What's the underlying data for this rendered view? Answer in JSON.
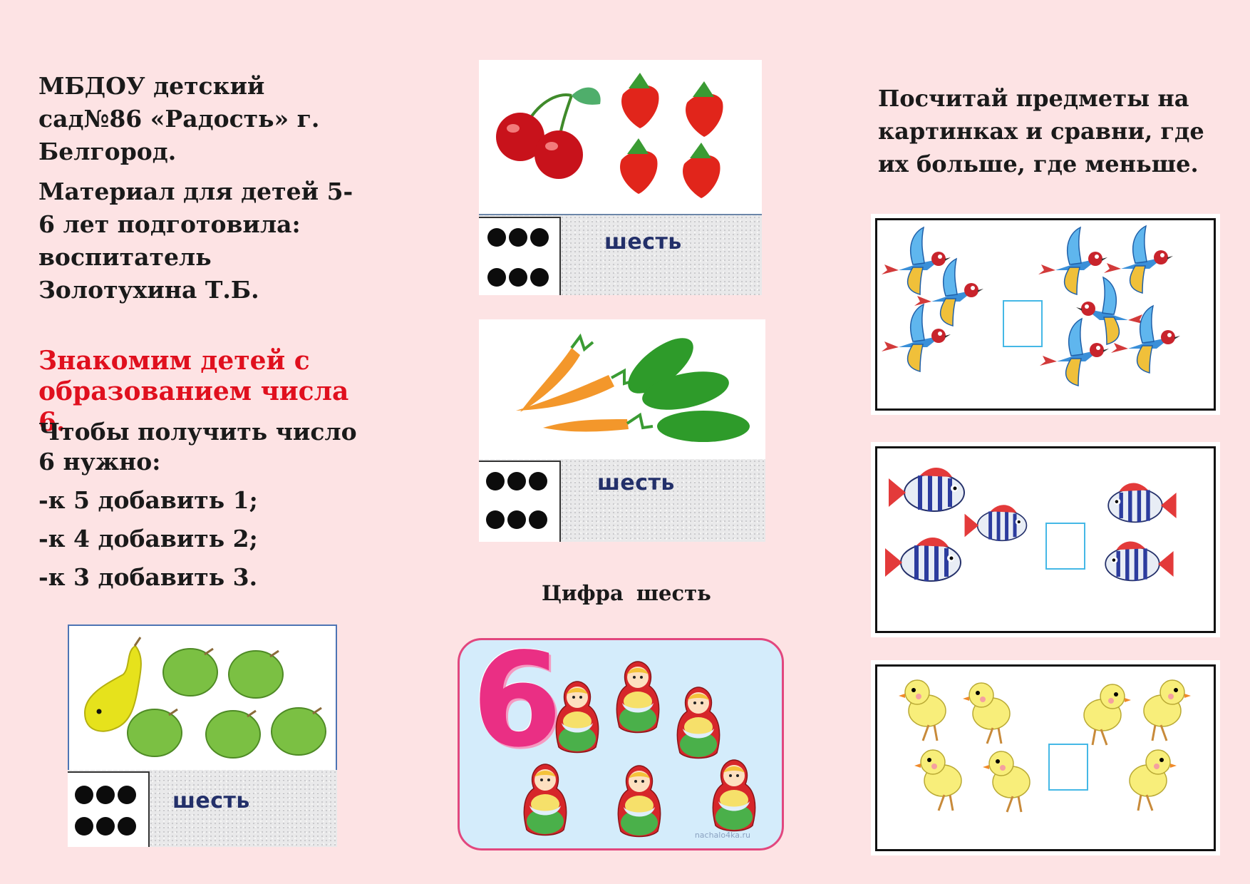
{
  "intro": {
    "line1": "МБДОУ детский сад№86 «Радость» г. Белгород.",
    "line2": "Материал для детей 5-6 лет подготовила: воспитатель Золотухина Т.Б."
  },
  "lesson": {
    "title": "Знакомим детей с образованием числа 6.",
    "rule_intro": "Чтобы получить число 6 нужно:",
    "steps": [
      "-к 5 добавить 1;",
      "-к 4 добавить  2;",
      "-к 3 добавить 3."
    ]
  },
  "cards": {
    "word": "шесть",
    "card1": {
      "left_group": "cherry",
      "left_count": 2,
      "right_group": "strawberry",
      "right_count": 4
    },
    "card2": {
      "left_group": "carrot",
      "left_count": 3,
      "right_group": "cucumber",
      "right_count": 3
    },
    "card3": {
      "left_group": "pear",
      "left_count": 1,
      "right_group": "apple",
      "right_count": 5
    }
  },
  "digit_section": {
    "caption": "Цифра  шесть",
    "digit": "6",
    "doll_count": 6,
    "watermark": "nachalo4ka.ru"
  },
  "task": {
    "text": "Посчитай предметы на картинках и сравни, где их больше, где меньше."
  },
  "compare": {
    "birds": {
      "left": 3,
      "right": 5
    },
    "fish": {
      "left": 3,
      "right": 2
    },
    "chicks": {
      "left": 4,
      "right": 3
    }
  },
  "colors": {
    "background": "#fde3e4",
    "title_red": "#e0101e",
    "digit_pink": "#ea2f84",
    "answer_box": "#45b8e6"
  }
}
